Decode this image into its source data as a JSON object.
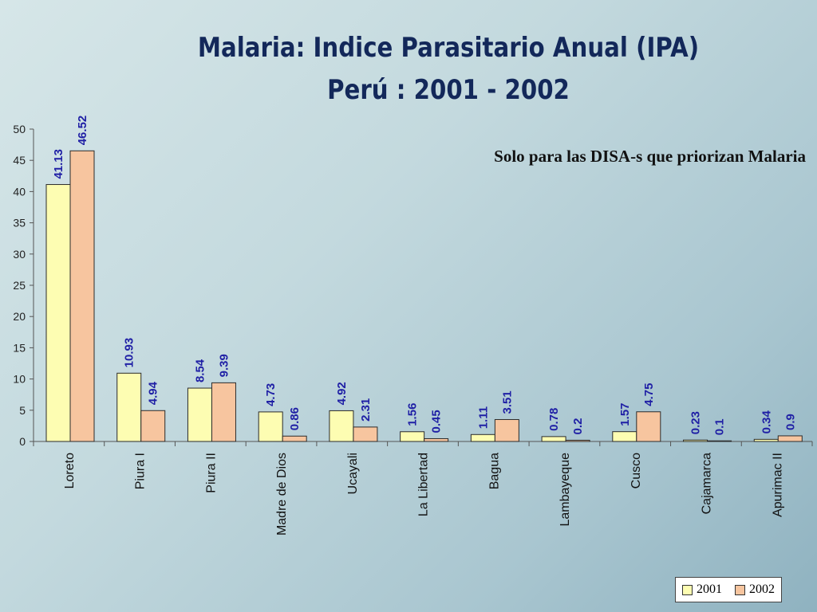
{
  "title_line1": "Malaria: Indice Parasitario Anual (IPA)",
  "title_line2": "Perú : 2001 - 2002",
  "subtitle": "Solo para las DISA-s que priorizan Malaria",
  "colors": {
    "series_2001": "#fdfdb2",
    "series_2002": "#f7c59f",
    "label": "#1f1fa5",
    "title": "#13285a"
  },
  "chart_data": {
    "type": "bar",
    "title": "Malaria: Indice Parasitario Anual (IPA) Perú : 2001 - 2002",
    "categories": [
      "Loreto",
      "Piura I",
      "Piura II",
      "Madre de Dios",
      "Ucayali",
      "La Libertad",
      "Bagua",
      "Lambayeque",
      "Cusco",
      "Cajamarca",
      "Apurimac II"
    ],
    "series": [
      {
        "name": "2001",
        "values": [
          41.13,
          10.93,
          8.54,
          4.73,
          4.92,
          1.56,
          1.11,
          0.78,
          1.57,
          0.23,
          0.34
        ],
        "labels": [
          "41.13",
          "10.93",
          "8.54",
          "4.73",
          "4.92",
          "1.56",
          "1.11",
          "0.78",
          "1.57",
          "0.23",
          "0.34"
        ]
      },
      {
        "name": "2002",
        "values": [
          46.52,
          4.94,
          9.39,
          0.86,
          2.31,
          0.45,
          3.51,
          0.2,
          4.75,
          0.1,
          0.9
        ],
        "labels": [
          "46.52",
          "4.94",
          "9.39",
          "0.86",
          "2.31",
          "0.45",
          "3.51",
          "0.2",
          "4.75",
          "0.1",
          "0.9"
        ]
      }
    ],
    "ylim": [
      0,
      50
    ],
    "yticks": [
      0,
      5,
      10,
      15,
      20,
      25,
      30,
      35,
      40,
      45,
      50
    ],
    "grid": false,
    "legend_position": "bottom-right"
  }
}
